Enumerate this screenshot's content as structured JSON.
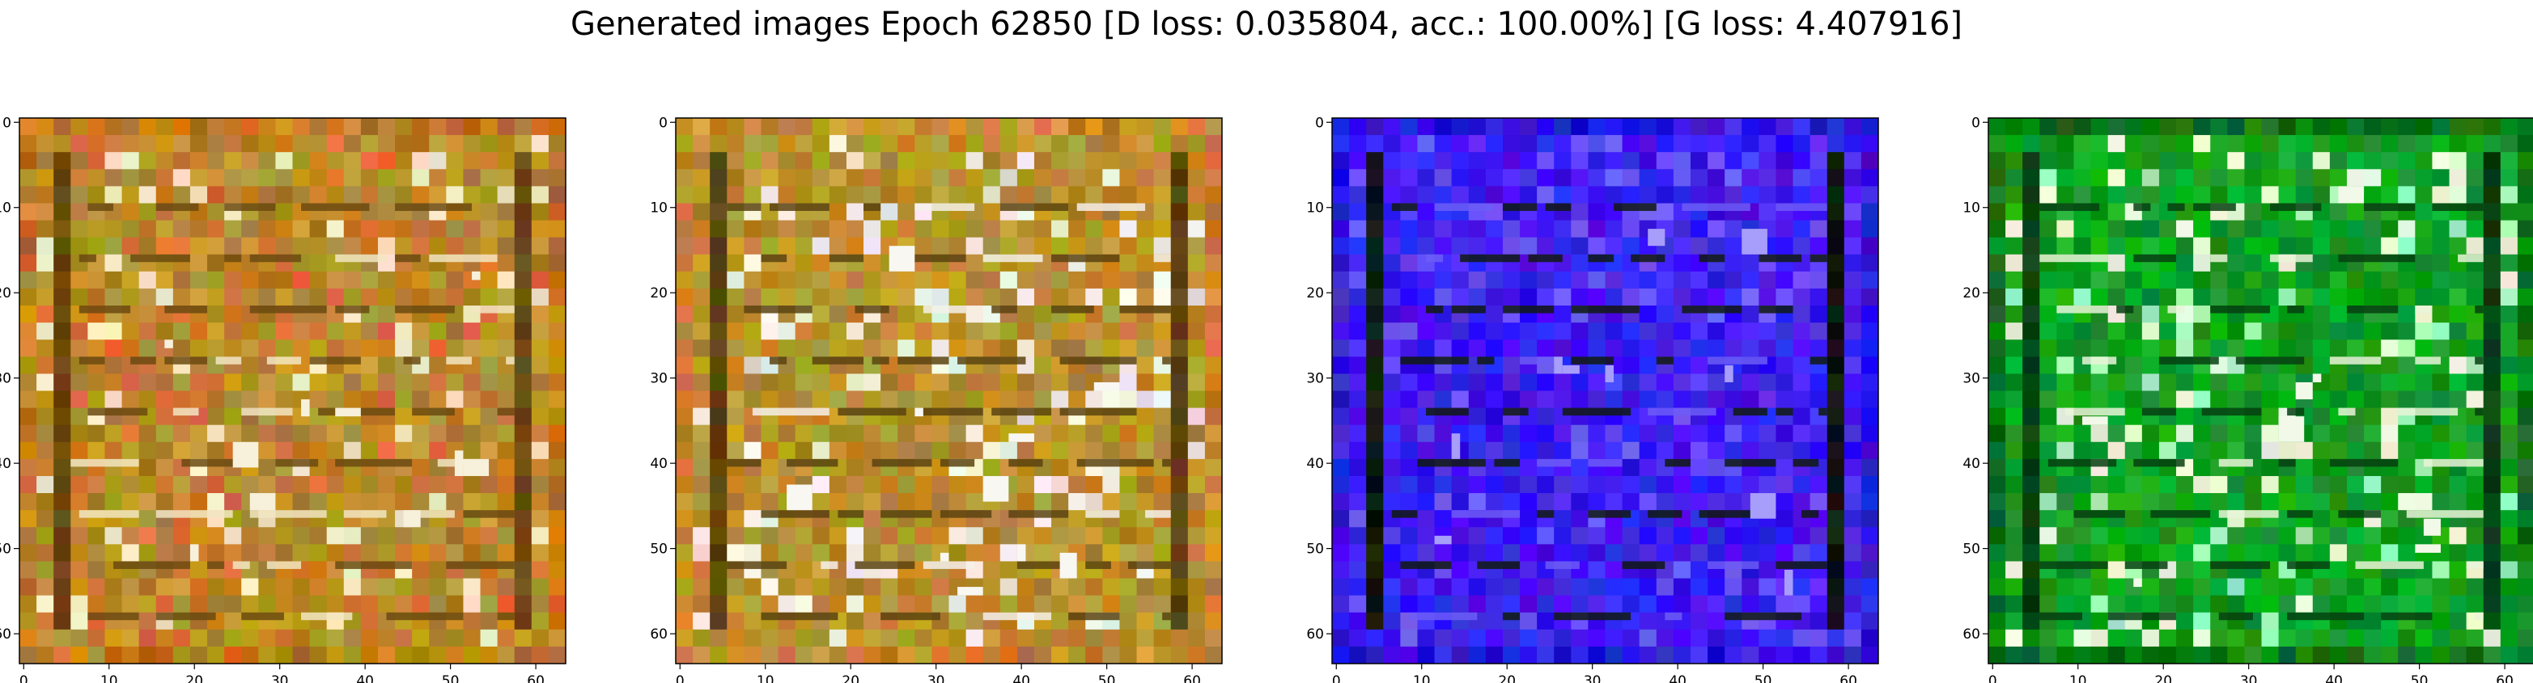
{
  "figure": {
    "suptitle": "Generated images Epoch 62850 [D loss: 0.035804, acc.: 100.00%] [G loss: 4.407916]"
  },
  "panels": [
    {
      "id": "panel-1",
      "palette": {
        "base": "#b98a2c",
        "dark": "#6b4a10",
        "accent": "#e06a3a",
        "hi": "#f2e6c2",
        "frame": "#c07a20"
      }
    },
    {
      "id": "panel-2",
      "palette": {
        "base": "#b8922e",
        "dark": "#5b4310",
        "accent": "#e8e2d6",
        "hi": "#f4f1ea",
        "frame": "#c88a30"
      }
    },
    {
      "id": "panel-3",
      "palette": {
        "base": "#3d1df0",
        "dark": "#0f1a10",
        "accent": "#5a3cf5",
        "hi": "#6c5cf6",
        "frame": "#2d18d8"
      }
    },
    {
      "id": "panel-4",
      "palette": {
        "base": "#0fa022",
        "dark": "#064010",
        "accent": "#9ef0b8",
        "hi": "#e9f5d8",
        "frame": "#0c7a18"
      }
    }
  ],
  "axes": {
    "xticks": [
      "0",
      "10",
      "20",
      "30",
      "40",
      "50",
      "60"
    ],
    "yticks": [
      "0",
      "10",
      "20",
      "30",
      "40",
      "50",
      "60"
    ]
  }
}
